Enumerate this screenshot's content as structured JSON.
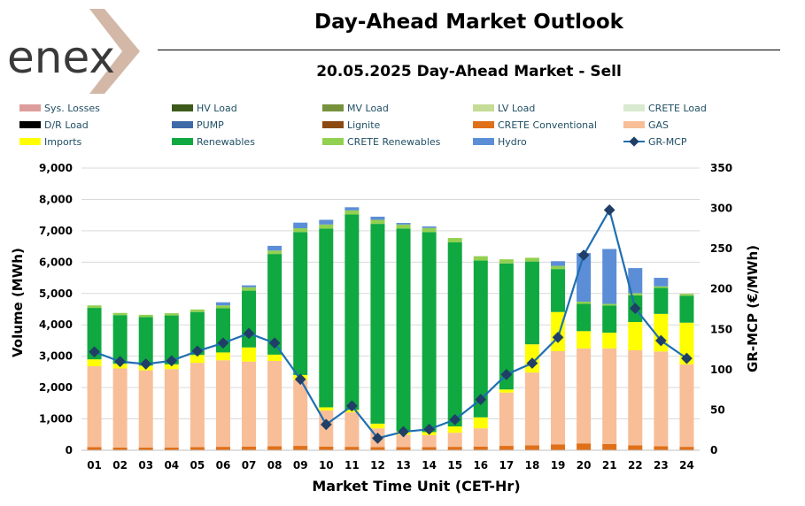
{
  "header": {
    "logo_text": "enex",
    "title": "Day-Ahead Market Outlook",
    "subtitle": "20.05.2025  Day-Ahead Market - Sell"
  },
  "colors": {
    "sys_losses": "#dd9d9a",
    "hv_load": "#3e5a1b",
    "mv_load": "#76923c",
    "lv_load": "#c4dc95",
    "crete_load": "#d8ead0",
    "dr_load": "#000000",
    "pump": "#3e6aa8",
    "lignite": "#8c4a10",
    "crete_conventional": "#e07018",
    "gas": "#f7be98",
    "imports": "#ffff00",
    "renewables": "#10a840",
    "crete_renewables": "#92d050",
    "hydro": "#5b8ed6",
    "mcp": "#1f6fb2",
    "mcp_marker": "#1f3f66"
  },
  "legend": [
    {
      "key": "sys_losses",
      "label": "Sys. Losses",
      "type": "bar"
    },
    {
      "key": "hv_load",
      "label": "HV Load",
      "type": "bar"
    },
    {
      "key": "mv_load",
      "label": "MV Load",
      "type": "bar"
    },
    {
      "key": "lv_load",
      "label": "LV Load",
      "type": "bar"
    },
    {
      "key": "crete_load",
      "label": "CRETE Load",
      "type": "bar"
    },
    {
      "key": "dr_load",
      "label": "D/R Load",
      "type": "bar"
    },
    {
      "key": "pump",
      "label": "PUMP",
      "type": "bar"
    },
    {
      "key": "lignite",
      "label": "Lignite",
      "type": "bar"
    },
    {
      "key": "crete_conventional",
      "label": "CRETE Conventional",
      "type": "bar"
    },
    {
      "key": "gas",
      "label": "GAS",
      "type": "bar"
    },
    {
      "key": "imports",
      "label": "Imports",
      "type": "bar"
    },
    {
      "key": "renewables",
      "label": "Renewables",
      "type": "bar"
    },
    {
      "key": "crete_renewables",
      "label": "CRETE Renewables",
      "type": "bar"
    },
    {
      "key": "hydro",
      "label": "Hydro",
      "type": "bar"
    },
    {
      "key": "mcp",
      "label": "GR-MCP",
      "type": "line"
    }
  ],
  "chart_data": {
    "type": "bar",
    "stacked": true,
    "xlabel": "Market Time Unit (CET-Hr)",
    "ylabel": "Volume (MWh)",
    "y2label": "GR-MCP (€/MWh)",
    "ylim": [
      0,
      9000
    ],
    "y2lim": [
      0,
      350
    ],
    "yticks": [
      "0",
      "1,000",
      "2,000",
      "3,000",
      "4,000",
      "5,000",
      "6,000",
      "7,000",
      "8,000",
      "9,000"
    ],
    "y2ticks": [
      "0",
      "50",
      "100",
      "150",
      "200",
      "250",
      "300",
      "350"
    ],
    "categories": [
      "01",
      "02",
      "03",
      "04",
      "05",
      "06",
      "07",
      "08",
      "09",
      "10",
      "11",
      "12",
      "13",
      "14",
      "15",
      "16",
      "17",
      "18",
      "19",
      "20",
      "21",
      "22",
      "23",
      "24"
    ],
    "series": [
      {
        "key": "crete_conventional",
        "name": "CRETE Conventional",
        "values": [
          100,
          90,
          90,
          90,
          100,
          110,
          120,
          130,
          140,
          120,
          110,
          100,
          100,
          100,
          110,
          120,
          140,
          160,
          190,
          220,
          200,
          160,
          130,
          110
        ]
      },
      {
        "key": "gas",
        "name": "GAS",
        "values": [
          2580,
          2520,
          2460,
          2500,
          2690,
          2760,
          2710,
          2720,
          2100,
          1150,
          1100,
          600,
          400,
          380,
          450,
          580,
          1700,
          2320,
          2970,
          3030,
          3050,
          3030,
          3020,
          2630
        ]
      },
      {
        "key": "imports",
        "name": "Imports",
        "values": [
          220,
          150,
          150,
          150,
          250,
          250,
          450,
          200,
          160,
          100,
          80,
          150,
          100,
          100,
          200,
          350,
          100,
          900,
          1250,
          550,
          500,
          900,
          1200,
          1330
        ]
      },
      {
        "key": "renewables",
        "name": "Renewables",
        "values": [
          1640,
          1550,
          1550,
          1560,
          1370,
          1410,
          1810,
          3210,
          4560,
          5700,
          6230,
          6370,
          6470,
          6380,
          5870,
          5000,
          4020,
          2640,
          1370,
          870,
          870,
          850,
          830,
          860
        ]
      },
      {
        "key": "crete_renewables",
        "name": "CRETE Renewables",
        "values": [
          80,
          70,
          70,
          70,
          80,
          90,
          110,
          110,
          120,
          130,
          130,
          130,
          130,
          130,
          140,
          140,
          130,
          120,
          100,
          70,
          50,
          70,
          50,
          60
        ]
      },
      {
        "key": "hydro",
        "name": "Hydro",
        "values": [
          0,
          0,
          0,
          0,
          0,
          100,
          60,
          150,
          180,
          150,
          100,
          100,
          50,
          50,
          0,
          0,
          0,
          0,
          150,
          1550,
          1750,
          800,
          270,
          0
        ]
      }
    ],
    "line": {
      "key": "mcp",
      "name": "GR-MCP",
      "axis": "y2",
      "values": [
        122,
        110,
        107,
        111,
        123,
        133,
        145,
        133,
        88,
        32,
        55,
        15,
        23,
        26,
        38,
        63,
        94,
        108,
        140,
        242,
        298,
        176,
        136,
        114
      ]
    }
  }
}
